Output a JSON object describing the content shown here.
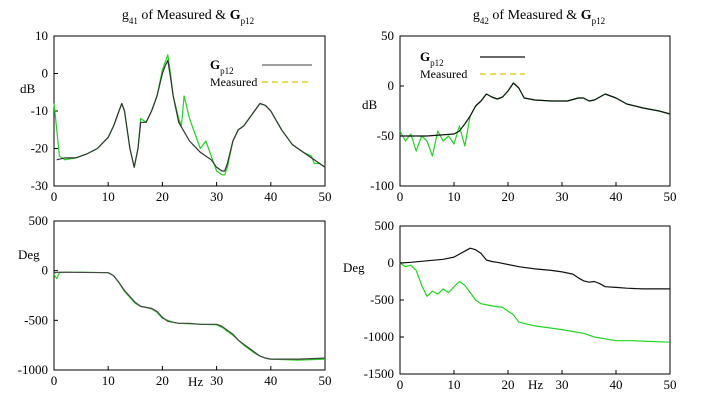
{
  "chart_data": [
    {
      "type": "line",
      "title_parts": [
        "g",
        "41",
        " of Measured & ",
        "G",
        "p12"
      ],
      "ylabel": "dB",
      "xlim": [
        0,
        50
      ],
      "ylim": [
        -30,
        10
      ],
      "xticks": [
        "0",
        "10",
        "20",
        "30",
        "40",
        "50"
      ],
      "yticks": [
        "10",
        "0",
        "-10",
        "-20",
        "-30"
      ],
      "legend_placement": "top-right",
      "legend": [
        {
          "name_parts": [
            "G",
            "p12"
          ],
          "color": "#666666",
          "dash": "solid"
        },
        {
          "name_parts": [
            "Measured"
          ],
          "color": "#d8c800",
          "dash": "dashed"
        }
      ],
      "series": [
        {
          "name": "Gp12",
          "color": "#333333",
          "x": [
            0.5,
            2,
            4,
            6,
            8,
            10,
            11,
            12,
            12.5,
            13,
            14,
            14.8,
            15.5,
            16,
            17,
            18,
            19,
            20,
            20.5,
            21,
            21.5,
            22,
            23,
            25,
            27,
            29,
            30,
            31,
            31.5,
            32,
            33,
            34,
            35,
            36,
            37,
            38,
            39,
            40,
            42,
            44,
            46,
            48,
            50
          ],
          "y": [
            -23,
            -22.5,
            -22.5,
            -21.5,
            -20,
            -17,
            -14,
            -10,
            -8,
            -10,
            -20,
            -25,
            -20,
            -13,
            -13,
            -10,
            -6,
            0,
            2,
            3.5,
            -1,
            -6,
            -13,
            -18,
            -21,
            -23,
            -25,
            -26,
            -26,
            -24,
            -18,
            -15,
            -14,
            -12,
            -10,
            -8,
            -8.5,
            -10,
            -15,
            -19,
            -21,
            -23,
            -25
          ]
        },
        {
          "name": "Measured",
          "color": "#22d422",
          "x": [
            0,
            0.3,
            1,
            2,
            4,
            6,
            8,
            10,
            11,
            12,
            12.5,
            13,
            14,
            14.8,
            15.5,
            16,
            17,
            18,
            19,
            20,
            20.5,
            21,
            21.5,
            22,
            23,
            23.5,
            24,
            25,
            26,
            27,
            28,
            29,
            30,
            31,
            31.5,
            32,
            33,
            34,
            35,
            36,
            37,
            38,
            39,
            40,
            42,
            44,
            46,
            47.5,
            48,
            49,
            50
          ],
          "y": [
            -8,
            -12,
            -22,
            -23,
            -22.5,
            -21.5,
            -20,
            -17,
            -14,
            -10,
            -8,
            -10,
            -20,
            -25,
            -20,
            -12,
            -13,
            -10,
            -6,
            1,
            3,
            5,
            0,
            -6,
            -12,
            -14,
            -6,
            -12,
            -16,
            -20,
            -18,
            -22,
            -26,
            -27,
            -27,
            -25,
            -18,
            -15,
            -14,
            -12,
            -10,
            -8,
            -8.5,
            -10,
            -15,
            -19,
            -21,
            -22,
            -24,
            -24,
            -25
          ]
        }
      ]
    },
    {
      "type": "line",
      "title_parts": [
        "g",
        "42",
        " of Measured & ",
        "G",
        "p12"
      ],
      "ylabel": "dB",
      "xlim": [
        0,
        50
      ],
      "ylim": [
        -100,
        50
      ],
      "xticks": [
        "0",
        "10",
        "20",
        "30",
        "40",
        "50"
      ],
      "yticks": [
        "50",
        "0",
        "-50",
        "-100"
      ],
      "legend_placement": "top-left",
      "legend": [
        {
          "name_parts": [
            "G",
            "p12"
          ],
          "color": "#111111",
          "dash": "solid"
        },
        {
          "name_parts": [
            "Measured"
          ],
          "color": "#d8c800",
          "dash": "dashed"
        }
      ],
      "series": [
        {
          "name": "Gp12",
          "color": "#111111",
          "x": [
            0,
            5,
            10,
            11,
            12,
            13,
            14,
            15,
            16,
            17,
            18,
            19,
            20,
            21,
            22,
            23,
            25,
            28,
            31,
            33,
            34,
            35,
            36,
            38,
            40,
            42,
            45,
            48,
            50
          ],
          "y": [
            -50,
            -50,
            -48,
            -45,
            -38,
            -30,
            -20,
            -15,
            -8,
            -11,
            -13,
            -11,
            -5,
            3,
            -2,
            -12,
            -14,
            -15,
            -15,
            -12,
            -12,
            -15,
            -14,
            -8,
            -12,
            -18,
            -22,
            -25,
            -28
          ]
        },
        {
          "name": "Measured",
          "color": "#22d422",
          "x": [
            0,
            1,
            2,
            3,
            4,
            5,
            6,
            7,
            8,
            9,
            10,
            11,
            12,
            13,
            14,
            15,
            16,
            17,
            18,
            19,
            20,
            21,
            22,
            23,
            25,
            28,
            31,
            33,
            34,
            35,
            36,
            38,
            40,
            42,
            45,
            48,
            50
          ],
          "y": [
            -45,
            -55,
            -48,
            -65,
            -50,
            -55,
            -70,
            -45,
            -55,
            -50,
            -58,
            -40,
            -60,
            -30,
            -20,
            -15,
            -8,
            -11,
            -13,
            -11,
            -5,
            3,
            -2,
            -12,
            -14,
            -15,
            -15,
            -12,
            -12,
            -15,
            -14,
            -8,
            -12,
            -18,
            -22,
            -25,
            -28
          ]
        }
      ]
    },
    {
      "type": "line",
      "title_parts": [],
      "ylabel": "Deg",
      "xlabel": "Hz",
      "xlim": [
        0,
        50
      ],
      "ylim": [
        -1000,
        500
      ],
      "xticks": [
        "0",
        "10",
        "20",
        "30",
        "40",
        "50"
      ],
      "yticks": [
        "500",
        "0",
        "-500",
        "-1000"
      ],
      "series": [
        {
          "name": "Gp12",
          "color": "#444444",
          "x": [
            0,
            1,
            10,
            11,
            12,
            13,
            14,
            15,
            16,
            17,
            18,
            19,
            20,
            21,
            22,
            23,
            25,
            27,
            30,
            31,
            32,
            33,
            34,
            35,
            36,
            37,
            38,
            39,
            40,
            45,
            50
          ],
          "y": [
            -20,
            -15,
            -20,
            -50,
            -120,
            -200,
            -260,
            -320,
            -360,
            -370,
            -380,
            -410,
            -470,
            -510,
            -520,
            -530,
            -530,
            -540,
            -540,
            -560,
            -600,
            -640,
            -700,
            -740,
            -780,
            -820,
            -860,
            -880,
            -890,
            -890,
            -880
          ]
        },
        {
          "name": "Measured",
          "color": "#22d422",
          "x": [
            0,
            0.5,
            1,
            2,
            5,
            10,
            11,
            12,
            13,
            14,
            15,
            16,
            17,
            18,
            19,
            20,
            21,
            22,
            23,
            25,
            27,
            30,
            31,
            32,
            33,
            34,
            35,
            36,
            37,
            38,
            39,
            40,
            45,
            50
          ],
          "y": [
            -40,
            -80,
            -20,
            -15,
            -15,
            -20,
            -50,
            -120,
            -210,
            -270,
            -330,
            -360,
            -370,
            -385,
            -420,
            -480,
            -500,
            -520,
            -530,
            -535,
            -540,
            -545,
            -570,
            -610,
            -650,
            -700,
            -750,
            -790,
            -830,
            -860,
            -880,
            -890,
            -900,
            -890
          ]
        }
      ]
    },
    {
      "type": "line",
      "title_parts": [],
      "ylabel": "Deg",
      "xlabel": "Hz",
      "xlim": [
        0,
        50
      ],
      "ylim": [
        -1500,
        500
      ],
      "xticks": [
        "0",
        "10",
        "20",
        "30",
        "40",
        "50"
      ],
      "yticks": [
        "500",
        "0",
        "-500",
        "-1000",
        "-1500"
      ],
      "series": [
        {
          "name": "Gp12",
          "color": "#111111",
          "x": [
            0,
            2,
            5,
            8,
            10,
            11,
            12,
            13,
            14,
            15,
            16,
            17,
            18,
            20,
            22,
            25,
            28,
            30,
            32,
            33,
            34,
            35,
            36,
            37,
            38,
            40,
            42,
            45,
            48,
            50
          ],
          "y": [
            0,
            10,
            30,
            50,
            80,
            120,
            160,
            200,
            180,
            130,
            40,
            20,
            10,
            -20,
            -50,
            -80,
            -100,
            -120,
            -150,
            -200,
            -240,
            -260,
            -250,
            -280,
            -320,
            -330,
            -340,
            -350,
            -350,
            -350
          ]
        },
        {
          "name": "Measured",
          "color": "#22d422",
          "x": [
            0,
            1,
            2,
            3,
            4,
            5,
            6,
            7,
            8,
            9,
            10,
            11,
            12,
            13,
            14,
            15,
            17,
            19,
            20,
            21,
            22,
            25,
            30,
            34,
            36,
            40,
            43,
            46,
            50
          ],
          "y": [
            0,
            -50,
            -30,
            -100,
            -300,
            -450,
            -380,
            -420,
            -350,
            -400,
            -320,
            -250,
            -300,
            -400,
            -500,
            -550,
            -580,
            -600,
            -650,
            -700,
            -800,
            -850,
            -900,
            -950,
            -1000,
            -1050,
            -1050,
            -1060,
            -1070
          ]
        }
      ]
    }
  ]
}
